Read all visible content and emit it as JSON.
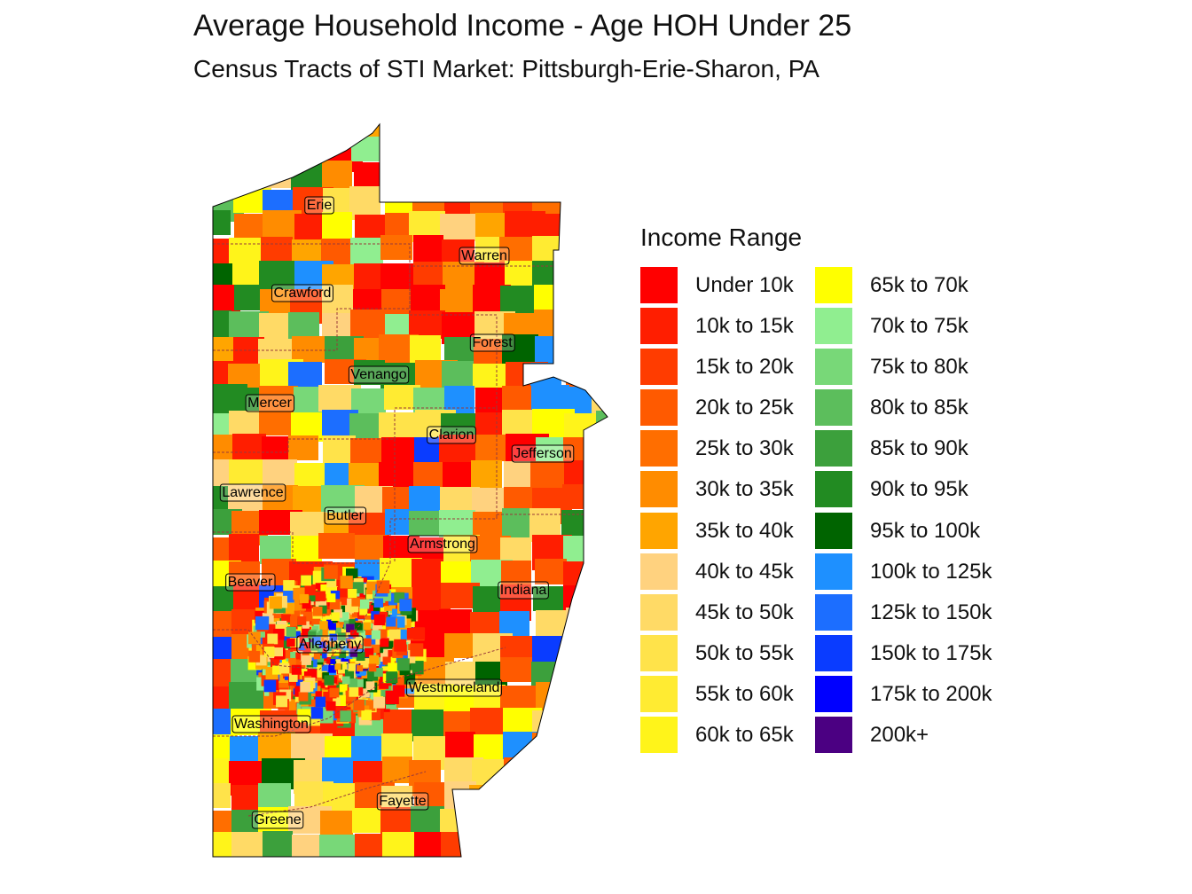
{
  "title": "Average Household Income - Age HOH Under 25",
  "subtitle": "Census Tracts of STI Market: Pittsburgh-Erie-Sharon, PA",
  "legend": {
    "title": "Income Range",
    "items": [
      {
        "label": "Under 10k",
        "color": "#FF0000"
      },
      {
        "label": "10k to 15k",
        "color": "#FF1E00"
      },
      {
        "label": "15k to 20k",
        "color": "#FF3C00"
      },
      {
        "label": "20k to 25k",
        "color": "#FF5A00"
      },
      {
        "label": "25k to 30k",
        "color": "#FF6E00"
      },
      {
        "label": "30k to 35k",
        "color": "#FF8C00"
      },
      {
        "label": "35k to 40k",
        "color": "#FFA500"
      },
      {
        "label": "40k to 45k",
        "color": "#FFD27F"
      },
      {
        "label": "45k to 50k",
        "color": "#FFDA66"
      },
      {
        "label": "50k to 55k",
        "color": "#FFE34A"
      },
      {
        "label": "55k to 60k",
        "color": "#FFEB32"
      },
      {
        "label": "60k to 65k",
        "color": "#FFF41A"
      },
      {
        "label": "65k to 70k",
        "color": "#FFFF00"
      },
      {
        "label": "70k to 75k",
        "color": "#90EE90"
      },
      {
        "label": "75k to 80k",
        "color": "#78D878"
      },
      {
        "label": "80k to 85k",
        "color": "#5CBE5C"
      },
      {
        "label": "85k to 90k",
        "color": "#3CA03C"
      },
      {
        "label": "90k to 95k",
        "color": "#228B22"
      },
      {
        "label": "95k to 100k",
        "color": "#006400"
      },
      {
        "label": "100k to 125k",
        "color": "#1E90FF"
      },
      {
        "label": "125k to 150k",
        "color": "#1C6EFF"
      },
      {
        "label": "150k to 175k",
        "color": "#0A3CFF"
      },
      {
        "label": "175k to 200k",
        "color": "#0000FF"
      },
      {
        "label": "200k+",
        "color": "#4B0082"
      }
    ]
  },
  "counties": [
    "Erie",
    "Warren",
    "Crawford",
    "Forest",
    "Venango",
    "Mercer",
    "Clarion",
    "Jefferson",
    "Lawrence",
    "Butler",
    "Armstrong",
    "Beaver",
    "Indiana",
    "Allegheny",
    "Westmoreland",
    "Washington",
    "Fayette",
    "Greene"
  ]
}
